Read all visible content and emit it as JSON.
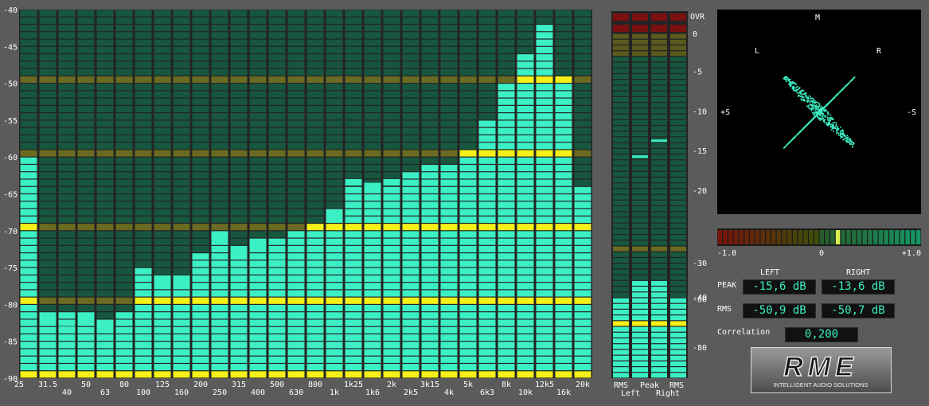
{
  "colors": {
    "background": "#5b5b5b",
    "bar_lit": "#3cf0c5",
    "bar_dim": "#17573f",
    "marker_lit": "#f5f017",
    "marker_dim": "#6a6a22"
  },
  "analyzer": {
    "db_ticks": [
      "-40",
      "-45",
      "-50",
      "-55",
      "-60",
      "-65",
      "-70",
      "-75",
      "-80",
      "-85",
      "-90"
    ],
    "bands_top": [
      "25",
      "31.5",
      "50",
      "80",
      "125",
      "200",
      "315",
      "500",
      "800",
      "1k25",
      "2k",
      "3k15",
      "5k",
      "8k",
      "12k5",
      "20k"
    ],
    "bands_bottom": [
      "40",
      "63",
      "100",
      "160",
      "250",
      "400",
      "630",
      "1k",
      "1k6",
      "2k5",
      "4k",
      "6k3",
      "10k",
      "16k"
    ],
    "chart_data": {
      "type": "bar",
      "categories": [
        "25",
        "31.5",
        "40",
        "50",
        "63",
        "80",
        "100",
        "125",
        "160",
        "200",
        "250",
        "315",
        "400",
        "500",
        "630",
        "800",
        "1k",
        "1k25",
        "1k6",
        "2k",
        "2k5",
        "3k15",
        "4k",
        "5k",
        "6k3",
        "8k",
        "10k",
        "12k5",
        "16k",
        "20k"
      ],
      "values": [
        -60,
        -81,
        -81,
        -81,
        -82,
        -81.5,
        -75.5,
        -76.5,
        -76,
        -73,
        -70,
        -72,
        -71,
        -71,
        -70,
        -69,
        -67,
        -64,
        -64,
        -64,
        -62,
        -61,
        -61,
        -59,
        -55,
        -50,
        -46,
        -42,
        -49,
        -64
      ],
      "peak_hold": [
        null,
        -82,
        -83.5,
        -82,
        -83,
        null,
        null,
        -77,
        -77,
        null,
        -71,
        -73,
        -72,
        -74.5,
        null,
        null,
        -68,
        -63.5,
        -64,
        -63.5,
        null,
        null,
        null,
        null,
        null,
        null,
        null,
        null,
        null,
        null
      ],
      "ylim": [
        -90,
        -40
      ],
      "unit": "dB"
    }
  },
  "level_meter": {
    "over_label": "OVR",
    "scale": [
      "0",
      "-5",
      "-10",
      "-15",
      "-20",
      "-30",
      "-40",
      "-60",
      "-80"
    ],
    "bottom_top": [
      "RMS",
      "Peak",
      "RMS"
    ],
    "bottom_bottom": [
      "Left",
      "Right"
    ],
    "channels": [
      {
        "name": "RMS Left",
        "level_db": -50.9
      },
      {
        "name": "Peak Left",
        "level_db": -35,
        "peak_hold_db": -15.6
      },
      {
        "name": "Peak Right",
        "level_db": -35,
        "peak_hold_db": -13.6
      },
      {
        "name": "RMS Right",
        "level_db": -50.7
      }
    ]
  },
  "goniometer": {
    "labels": {
      "m": "M",
      "l": "L",
      "r": "R",
      "ps": "+S",
      "ms": "-S"
    }
  },
  "correlation": {
    "min": "-1.0",
    "mid": "0",
    "max": "+1.0",
    "value": 0.2
  },
  "readouts": {
    "left_header": "LEFT",
    "right_header": "RIGHT",
    "peak_label": "PEAK",
    "rms_label": "RMS",
    "corr_label": "Correlation",
    "peak_left": "-15,6 dB",
    "peak_right": "-13,6 dB",
    "rms_left": "-50,9 dB",
    "rms_right": "-50,7 dB",
    "correlation": "0,200"
  },
  "logo": {
    "text": "RME",
    "tagline": "INTELLIGENT AUDIO SOLUTIONS"
  }
}
